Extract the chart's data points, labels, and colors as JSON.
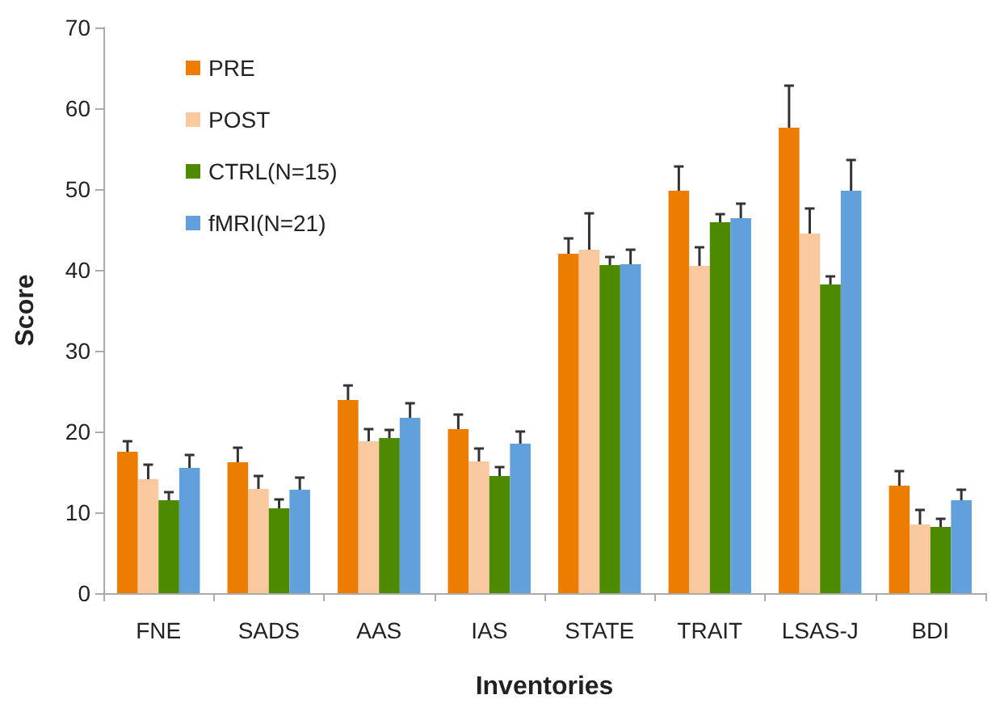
{
  "chart_data": {
    "type": "bar",
    "xlabel": "Inventories",
    "ylabel": "Score",
    "categories": [
      "FNE",
      "SADS",
      "AAS",
      "IAS",
      "STATE",
      "TRAIT",
      "LSAS-J",
      "BDI"
    ],
    "series": [
      {
        "name": "PRE",
        "color": "#ed7d00",
        "values": [
          17.5,
          16.2,
          23.9,
          20.3,
          42.0,
          49.8,
          57.6,
          13.3
        ],
        "errors": [
          [
            17.5,
            18.8
          ],
          [
            16.2,
            18.0
          ],
          [
            23.9,
            25.7
          ],
          [
            20.3,
            22.1
          ],
          [
            42.0,
            43.9
          ],
          [
            49.8,
            52.8
          ],
          [
            57.6,
            62.8
          ],
          [
            13.3,
            15.1
          ]
        ]
      },
      {
        "name": "POST",
        "color": "#fbc9a0",
        "values": [
          14.1,
          12.9,
          18.8,
          16.3,
          42.5,
          40.5,
          44.5,
          8.5
        ],
        "errors": [
          [
            14.1,
            15.9
          ],
          [
            12.9,
            14.5
          ],
          [
            18.8,
            20.3
          ],
          [
            16.3,
            17.9
          ],
          [
            42.5,
            47.0
          ],
          [
            40.5,
            42.8
          ],
          [
            44.5,
            47.6
          ],
          [
            8.5,
            10.3
          ]
        ]
      },
      {
        "name": "CTRL(N=15)",
        "color": "#4e8a00",
        "values": [
          11.5,
          10.5,
          19.2,
          14.5,
          40.6,
          45.9,
          38.2,
          8.2
        ],
        "errors": [
          [
            11.5,
            12.5
          ],
          [
            10.5,
            11.6
          ],
          [
            19.2,
            20.2
          ],
          [
            14.5,
            15.6
          ],
          [
            40.6,
            41.6
          ],
          [
            45.9,
            46.9
          ],
          [
            38.2,
            39.2
          ],
          [
            8.2,
            9.2
          ]
        ]
      },
      {
        "name": "fMRI(N=21)",
        "color": "#62a0dc",
        "values": [
          15.5,
          12.8,
          21.7,
          18.5,
          40.7,
          46.4,
          49.8,
          11.5
        ],
        "errors": [
          [
            15.5,
            17.1
          ],
          [
            12.8,
            14.3
          ],
          [
            21.7,
            23.5
          ],
          [
            18.5,
            20.0
          ],
          [
            40.7,
            42.5
          ],
          [
            46.4,
            48.2
          ],
          [
            49.8,
            53.6
          ],
          [
            11.5,
            12.8
          ]
        ]
      }
    ],
    "ylim": [
      0,
      70
    ],
    "yticks": [
      0,
      10,
      20,
      30,
      40,
      50,
      60,
      70
    ],
    "grid": false,
    "legend": "top left"
  }
}
